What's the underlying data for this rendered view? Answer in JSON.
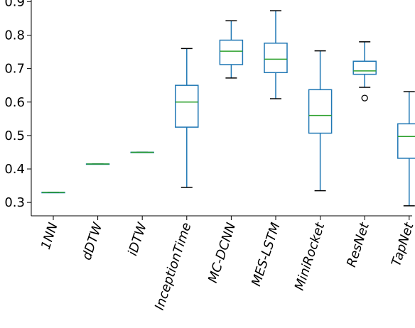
{
  "chart_data": {
    "type": "box",
    "title": "",
    "xlabel": "",
    "ylabel": "",
    "ylim": [
      0.26,
      0.905
    ],
    "yticks": [
      0.3,
      0.4,
      0.5,
      0.6,
      0.7,
      0.8,
      0.9
    ],
    "ytick_labels": [
      "0.3",
      "0.4",
      "0.5",
      "0.6",
      "0.7",
      "0.8",
      "0.9"
    ],
    "grid": false,
    "colors": {
      "box": "#1f77b4",
      "median": "#2ca02c",
      "whisker_cap": "#000000",
      "axis": "#000000"
    },
    "categories": [
      "1NN",
      "dDTW",
      "iDTW",
      "InceptionTime",
      "MC-DCNN",
      "MES-LSTM",
      "MiniRocket",
      "ResNet",
      "TapNet"
    ],
    "boxes": [
      {
        "min": 0.33,
        "q1": 0.33,
        "median": 0.33,
        "q3": 0.33,
        "max": 0.33,
        "outliers": []
      },
      {
        "min": 0.415,
        "q1": 0.415,
        "median": 0.415,
        "q3": 0.415,
        "max": 0.415,
        "outliers": []
      },
      {
        "min": 0.45,
        "q1": 0.45,
        "median": 0.45,
        "q3": 0.45,
        "max": 0.45,
        "outliers": []
      },
      {
        "min": 0.345,
        "q1": 0.525,
        "median": 0.6,
        "q3": 0.65,
        "max": 0.76,
        "outliers": []
      },
      {
        "min": 0.672,
        "q1": 0.712,
        "median": 0.752,
        "q3": 0.785,
        "max": 0.843,
        "outliers": []
      },
      {
        "min": 0.61,
        "q1": 0.688,
        "median": 0.728,
        "q3": 0.776,
        "max": 0.873,
        "outliers": []
      },
      {
        "min": 0.335,
        "q1": 0.507,
        "median": 0.56,
        "q3": 0.637,
        "max": 0.753,
        "outliers": []
      },
      {
        "min": 0.644,
        "q1": 0.683,
        "median": 0.693,
        "q3": 0.722,
        "max": 0.78,
        "outliers": [
          0.612
        ]
      },
      {
        "min": 0.29,
        "q1": 0.432,
        "median": 0.497,
        "q3": 0.535,
        "max": 0.631,
        "outliers": []
      }
    ]
  }
}
